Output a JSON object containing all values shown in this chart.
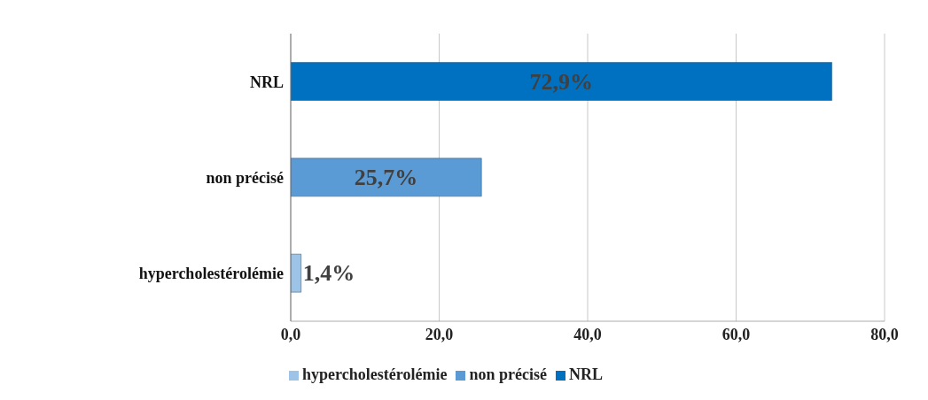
{
  "chart_data": {
    "type": "bar",
    "orientation": "horizontal",
    "stacked": true,
    "categories": [
      "NRL",
      "non précisé",
      "hypercholestérolémie"
    ],
    "series": [
      {
        "name": "hypercholestérolémie",
        "color": "#9dc3e6",
        "values": [
          null,
          null,
          1.4
        ],
        "value_labels": [
          null,
          null,
          "1,4%"
        ]
      },
      {
        "name": "non précisé",
        "color": "#5b9bd5",
        "values": [
          null,
          25.7,
          null
        ],
        "value_labels": [
          null,
          "25,7%",
          null
        ]
      },
      {
        "name": "NRL",
        "color": "#0070c0",
        "values": [
          72.9,
          null,
          null
        ],
        "value_labels": [
          "72,9%",
          null,
          null
        ]
      }
    ],
    "xlim": [
      0,
      80
    ],
    "xticks": [
      {
        "value": 0,
        "label": "0,0"
      },
      {
        "value": 20,
        "label": "20,0"
      },
      {
        "value": 40,
        "label": "40,0"
      },
      {
        "value": 60,
        "label": "60,0"
      },
      {
        "value": 80,
        "label": "80,0"
      }
    ],
    "grid": "x",
    "legend": "bottom"
  }
}
